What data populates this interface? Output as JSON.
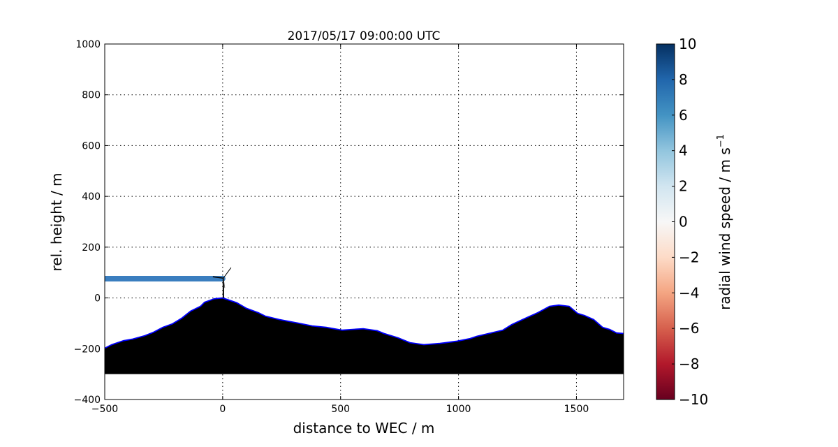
{
  "chart_data": {
    "type": "area",
    "title": "2017/05/17 09:00:00 UTC",
    "xlabel": "distance to WEC / m",
    "ylabel": "rel. height / m",
    "xlim": [
      -500,
      1700
    ],
    "ylim": [
      -400,
      1000
    ],
    "xticks": [
      -500,
      0,
      500,
      1000,
      1500
    ],
    "xtick_labels": [
      "−500",
      "0",
      "500",
      "1000",
      "1500"
    ],
    "yticks": [
      -400,
      -200,
      0,
      200,
      400,
      600,
      800,
      1000
    ],
    "ytick_labels": [
      "−400",
      "−200",
      "0",
      "200",
      "400",
      "600",
      "800",
      "1000"
    ],
    "grid": true,
    "terrain": {
      "fill_color": "#000000",
      "edge_color": "#0000ff",
      "base": -300,
      "x": [
        -500,
        -494,
        -470,
        -420,
        -382,
        -331,
        -293,
        -254,
        -213,
        -174,
        -136,
        -94,
        -77,
        -35,
        0,
        60,
        101,
        151,
        181,
        240,
        320,
        379,
        439,
        507,
        596,
        655,
        684,
        744,
        794,
        853,
        921,
        989,
        1049,
        1078,
        1128,
        1188,
        1226,
        1277,
        1336,
        1386,
        1425,
        1469,
        1505,
        1534,
        1573,
        1611,
        1641,
        1670,
        1700
      ],
      "y": [
        -198,
        -195,
        -184,
        -168,
        -162,
        -149,
        -135,
        -116,
        -102,
        -80,
        -52,
        -33,
        -17,
        -3,
        0,
        -19,
        -41,
        -58,
        -72,
        -85,
        -99,
        -110,
        -116,
        -127,
        -121,
        -129,
        -140,
        -157,
        -176,
        -184,
        -179,
        -171,
        -160,
        -151,
        -140,
        -127,
        -105,
        -83,
        -58,
        -33,
        -28,
        -33,
        -61,
        -69,
        -85,
        -116,
        -124,
        -138,
        -140
      ]
    },
    "beam": {
      "x_start": -500,
      "x_end": 0,
      "height": 76,
      "radial_wind_speed": 6
    },
    "turbine": {
      "x": 0,
      "hub_height": 78
    },
    "colorbar": {
      "label": "radial wind speed / m s",
      "label_superscript": "−1",
      "colormap": "RdBu_r",
      "range": [
        -10,
        10
      ],
      "ticks": [
        10,
        8,
        6,
        4,
        2,
        0,
        -2,
        -4,
        -6,
        -8,
        -10
      ],
      "tick_labels": [
        "10",
        "8",
        "6",
        "4",
        "2",
        "0",
        "−2",
        "−4",
        "−6",
        "−8",
        "−10"
      ]
    }
  }
}
